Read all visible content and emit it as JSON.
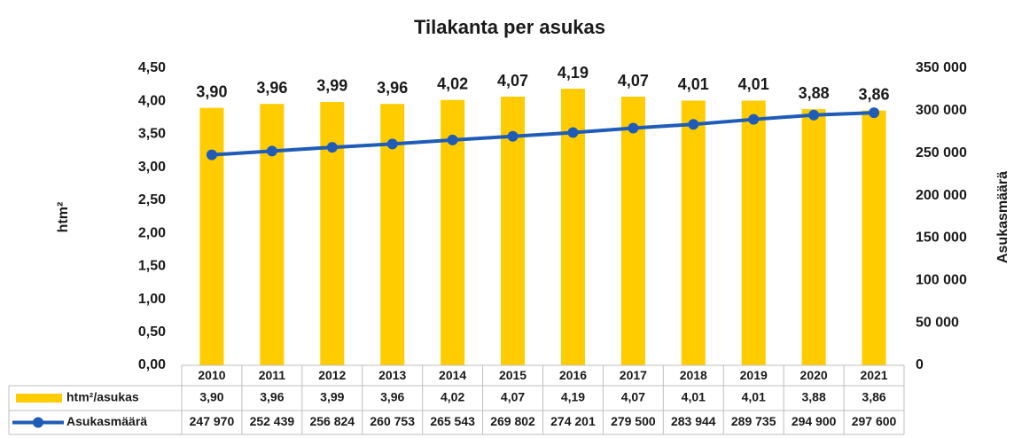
{
  "chart_data": {
    "type": "bar",
    "title": "Tilakanta per asukas",
    "y_label": "htm²",
    "y2_label": "Asukasmäärä",
    "categories": [
      "2010",
      "2011",
      "2012",
      "2013",
      "2014",
      "2015",
      "2016",
      "2017",
      "2018",
      "2019",
      "2020",
      "2021"
    ],
    "series": [
      {
        "name": "htm²/asukas",
        "color": "#ffcc00",
        "values": [
          3.9,
          3.96,
          3.99,
          3.96,
          4.02,
          4.07,
          4.19,
          4.07,
          4.01,
          4.01,
          3.88,
          3.86
        ],
        "value_labels": [
          "3,90",
          "3,96",
          "3,99",
          "3,96",
          "4,02",
          "4,07",
          "4,19",
          "4,07",
          "4,01",
          "4,01",
          "3,88",
          "3,86"
        ]
      },
      {
        "name": "Asukasmäärä",
        "type": "line",
        "axis": "y2",
        "color": "#1f5cb8",
        "values": [
          247970,
          252439,
          256824,
          260753,
          265543,
          269802,
          274201,
          279500,
          283944,
          289735,
          294900,
          297600
        ],
        "value_labels": [
          "247 970",
          "252 439",
          "256 824",
          "260 753",
          "265 543",
          "269 802",
          "274 201",
          "279 500",
          "283 944",
          "289 735",
          "294 900",
          "297 600"
        ]
      }
    ],
    "ylim": [
      0,
      4.5
    ],
    "yticks": [
      {
        "value": 0,
        "label": "0,00"
      },
      {
        "value": 0.5,
        "label": "0,50"
      },
      {
        "value": 1,
        "label": "1,00"
      },
      {
        "value": 1.5,
        "label": "1,50"
      },
      {
        "value": 2,
        "label": "2,00"
      },
      {
        "value": 2.5,
        "label": "2,50"
      },
      {
        "value": 3,
        "label": "3,00"
      },
      {
        "value": 3.5,
        "label": "3,50"
      },
      {
        "value": 4,
        "label": "4,00"
      },
      {
        "value": 4.5,
        "label": "4,50"
      }
    ],
    "y2lim": [
      0,
      350000
    ],
    "y2ticks": [
      0,
      {
        "value": 50000,
        "label": "50 000"
      },
      {
        "value": 100000,
        "label": "100 000"
      },
      {
        "value": 150000,
        "label": "150 000"
      },
      {
        "value": 200000,
        "label": "200 000"
      },
      {
        "value": 250000,
        "label": "250 000"
      },
      {
        "value": 300000,
        "label": "300 000"
      },
      {
        "value": 350000,
        "label": "350 000"
      }
    ],
    "data_table": true
  }
}
